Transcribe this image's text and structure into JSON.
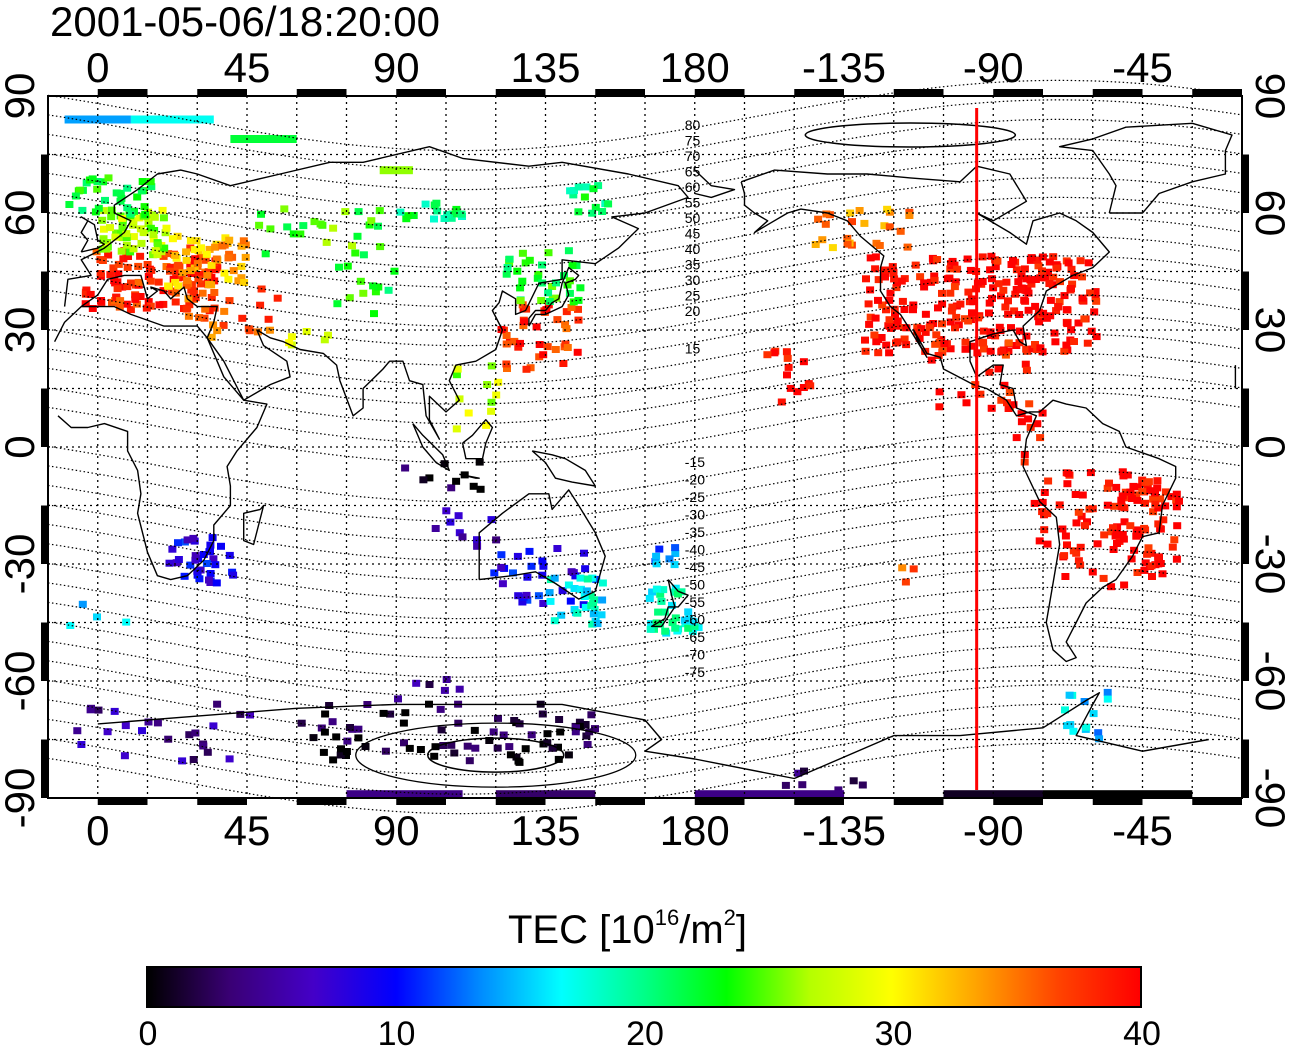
{
  "title": "2001-05-06/18:20:00",
  "map": {
    "top_lon_labels": [
      "0",
      "45",
      "90",
      "135",
      "180",
      "-135",
      "-90",
      "-45"
    ],
    "bottom_lon_labels": [
      "0",
      "45",
      "90",
      "135",
      "180",
      "-135",
      "-90",
      "-45"
    ],
    "left_lat_labels": [
      "90",
      "60",
      "30",
      "0",
      "-30",
      "-60",
      "-90"
    ],
    "right_lat_labels": [
      "90",
      "60",
      "30",
      "0",
      "-30",
      "-60",
      "-90"
    ],
    "contour_labels_north": [
      "80",
      "75",
      "70",
      "65",
      "60",
      "55",
      "50",
      "45",
      "40",
      "35",
      "30",
      "25",
      "20",
      "15"
    ],
    "contour_labels_south": [
      "-15",
      "-20",
      "-25",
      "-30",
      "-35",
      "-40",
      "-45",
      "-50",
      "-55",
      "-60",
      "-65",
      "-70",
      "-75"
    ],
    "meridian_marker_lon": -95,
    "meridian_marker_color": "#ff0000"
  },
  "colorbar": {
    "title_main": "TEC  [10",
    "title_exp": "16",
    "title_mid": "/m",
    "title_exp2": "2",
    "title_end": "]",
    "ticks": [
      "0",
      "10",
      "20",
      "30",
      "40"
    ],
    "min": 0,
    "max": 40,
    "colors": [
      "#000000",
      "#3a0075",
      "#4400c8",
      "#0000ff",
      "#0088ff",
      "#00ffff",
      "#00ff88",
      "#00ff00",
      "#b4ff00",
      "#ffff00",
      "#ffa500",
      "#ff4400",
      "#ff0000"
    ]
  }
}
